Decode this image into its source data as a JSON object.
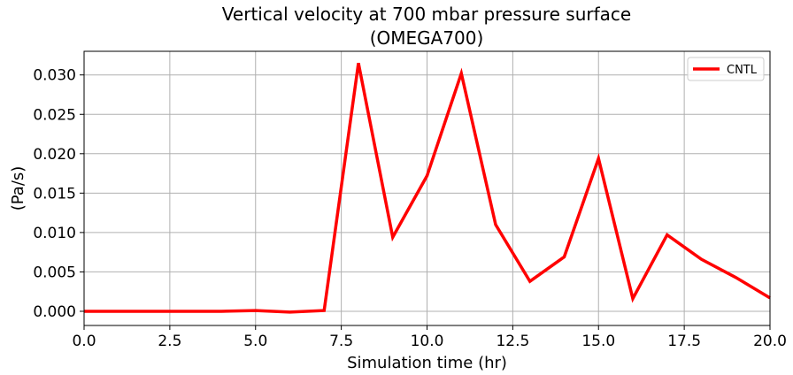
{
  "chart_data": {
    "type": "line",
    "title_line1": "Vertical velocity at 700 mbar pressure surface",
    "title_line2": "(OMEGA700)",
    "xlabel": "Simulation time (hr)",
    "ylabel": "(Pa/s)",
    "xlim": [
      0,
      20
    ],
    "ylim": [
      -0.0018,
      0.033
    ],
    "xticks": [
      0,
      2.5,
      5,
      7.5,
      10,
      12.5,
      15,
      17.5,
      20
    ],
    "xtick_labels": [
      "0.0",
      "2.5",
      "5.0",
      "7.5",
      "10.0",
      "12.5",
      "15.0",
      "17.5",
      "20.0"
    ],
    "yticks": [
      0,
      0.005,
      0.01,
      0.015,
      0.02,
      0.025,
      0.03
    ],
    "ytick_labels": [
      "0.000",
      "0.005",
      "0.010",
      "0.015",
      "0.020",
      "0.025",
      "0.030"
    ],
    "grid": true,
    "legend_position": "top-right",
    "series": [
      {
        "name": "CNTL",
        "color": "#ff0000",
        "x": [
          0,
          1,
          2,
          3,
          4,
          5,
          6,
          7,
          8,
          9,
          10,
          11,
          12,
          13,
          14,
          15,
          16,
          17,
          18,
          19,
          20
        ],
        "y": [
          0.0,
          0.0,
          0.0,
          0.0,
          0.0,
          0.0001,
          -0.0001,
          0.0001,
          0.0315,
          0.0094,
          0.0172,
          0.0302,
          0.011,
          0.0038,
          0.0069,
          0.0194,
          0.0016,
          0.0097,
          0.0066,
          0.0043,
          0.0017
        ]
      }
    ]
  }
}
